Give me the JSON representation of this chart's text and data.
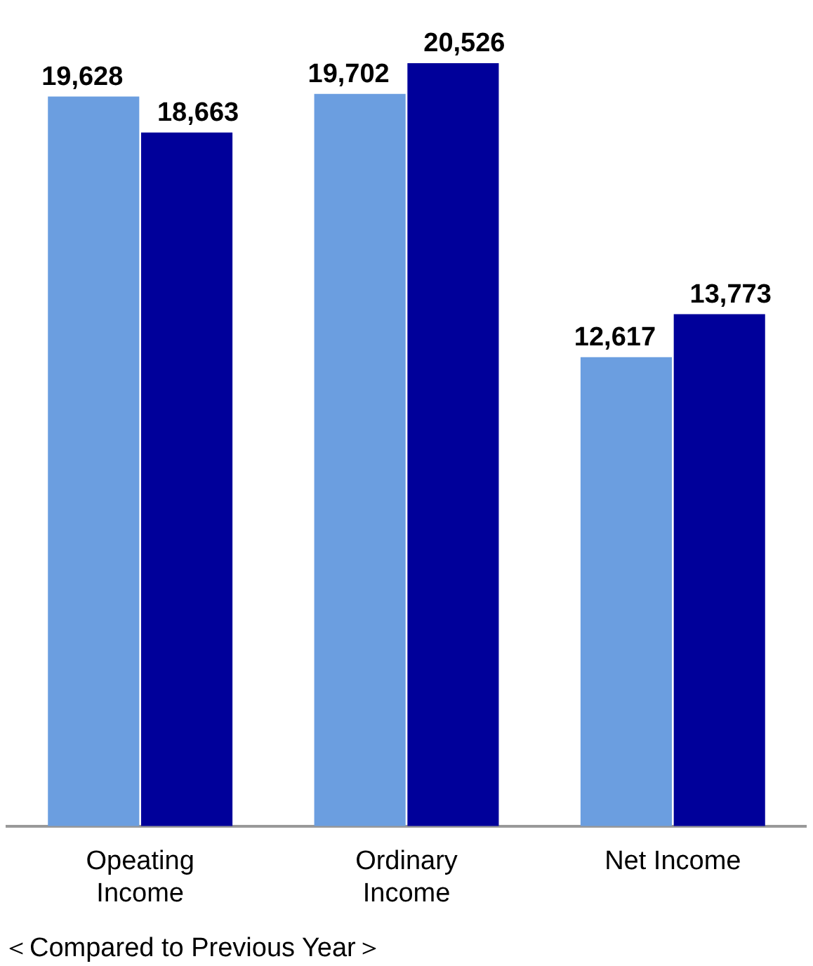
{
  "chart_data": {
    "type": "bar",
    "categories": [
      "Opeating Income",
      "Ordinary Income",
      "Net Income"
    ],
    "series": [
      {
        "color": "#6b9ee0",
        "values": [
          19628,
          19702,
          12617
        ],
        "value_labels": [
          "19,628",
          "19,702",
          "12,617"
        ]
      },
      {
        "color": "#00009a",
        "values": [
          18663,
          20526,
          13773
        ],
        "value_labels": [
          "18,663",
          "20,526",
          "13,773"
        ]
      }
    ],
    "legend": false,
    "grid": false,
    "annotations": [
      "＜Compared to Previous Year＞"
    ]
  }
}
